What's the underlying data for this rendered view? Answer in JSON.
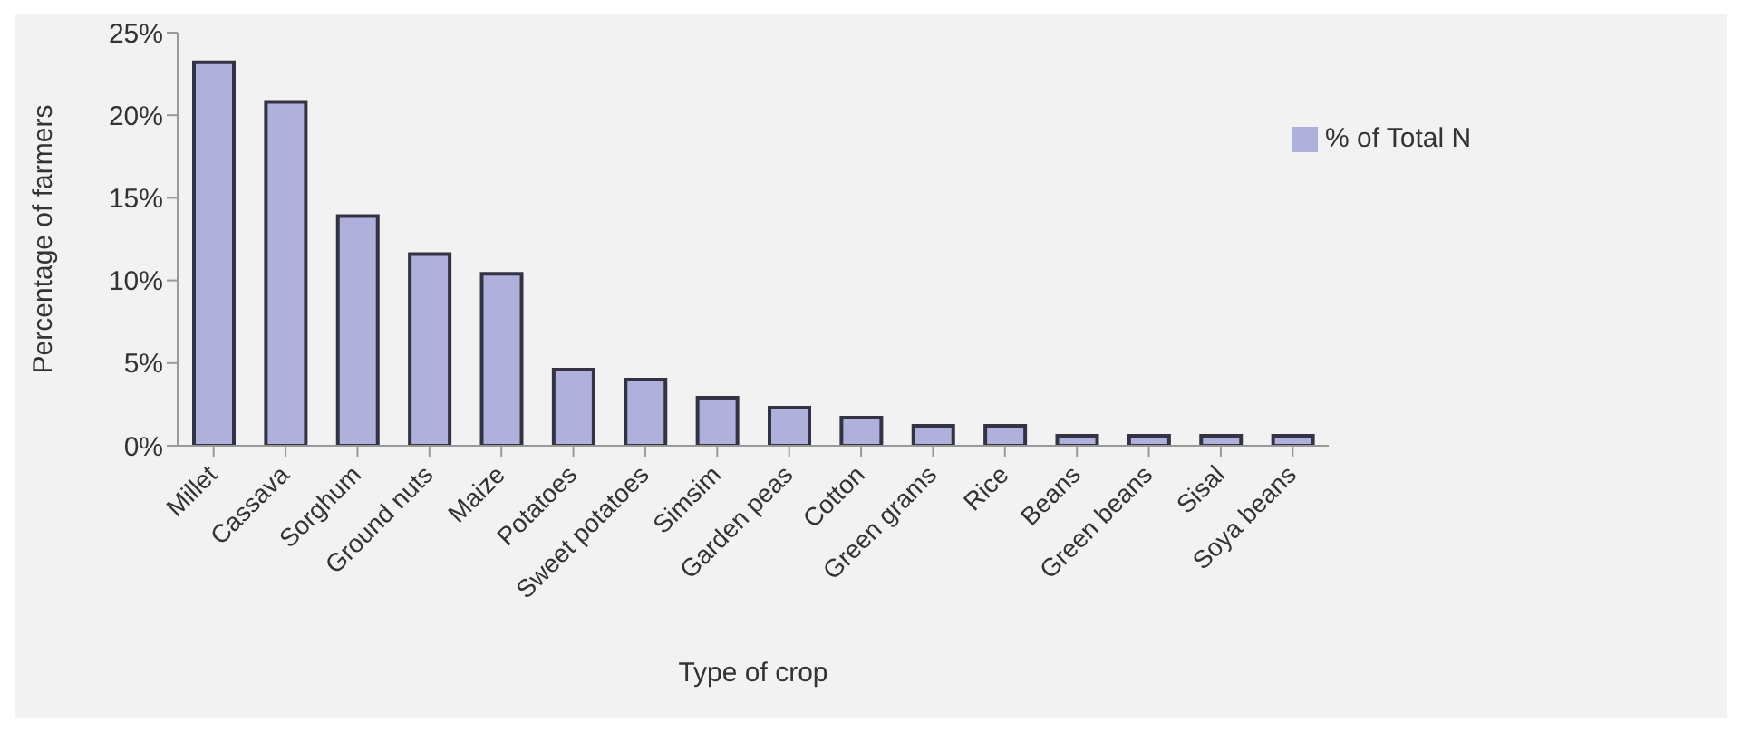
{
  "chart_data": {
    "type": "bar",
    "xlabel": "Type of crop",
    "ylabel": "Percentage of farmers",
    "categories": [
      "Millet",
      "Cassava",
      "Sorghum",
      "Ground nuts",
      "Maize",
      "Potatoes",
      "Sweet potatoes",
      "Simsim",
      "Garden peas",
      "Cotton",
      "Green grams",
      "Rice",
      "Beans",
      "Green beans",
      "Sisal",
      "Soya beans"
    ],
    "series": [
      {
        "name": "% of Total N",
        "color": "#b0b0dc",
        "values": [
          23.2,
          20.8,
          13.9,
          11.6,
          10.4,
          4.6,
          4.0,
          2.9,
          2.3,
          1.7,
          1.2,
          1.2,
          0.6,
          0.6,
          0.6,
          0.6
        ]
      }
    ],
    "ylim": [
      0,
      25
    ],
    "yticks": [
      {
        "value": 0,
        "label": "0%"
      },
      {
        "value": 5,
        "label": "5%"
      },
      {
        "value": 10,
        "label": "10%"
      },
      {
        "value": 15,
        "label": "15%"
      },
      {
        "value": 20,
        "label": "20%"
      },
      {
        "value": 25,
        "label": "25%"
      }
    ],
    "grid": false,
    "legend": "top right"
  }
}
